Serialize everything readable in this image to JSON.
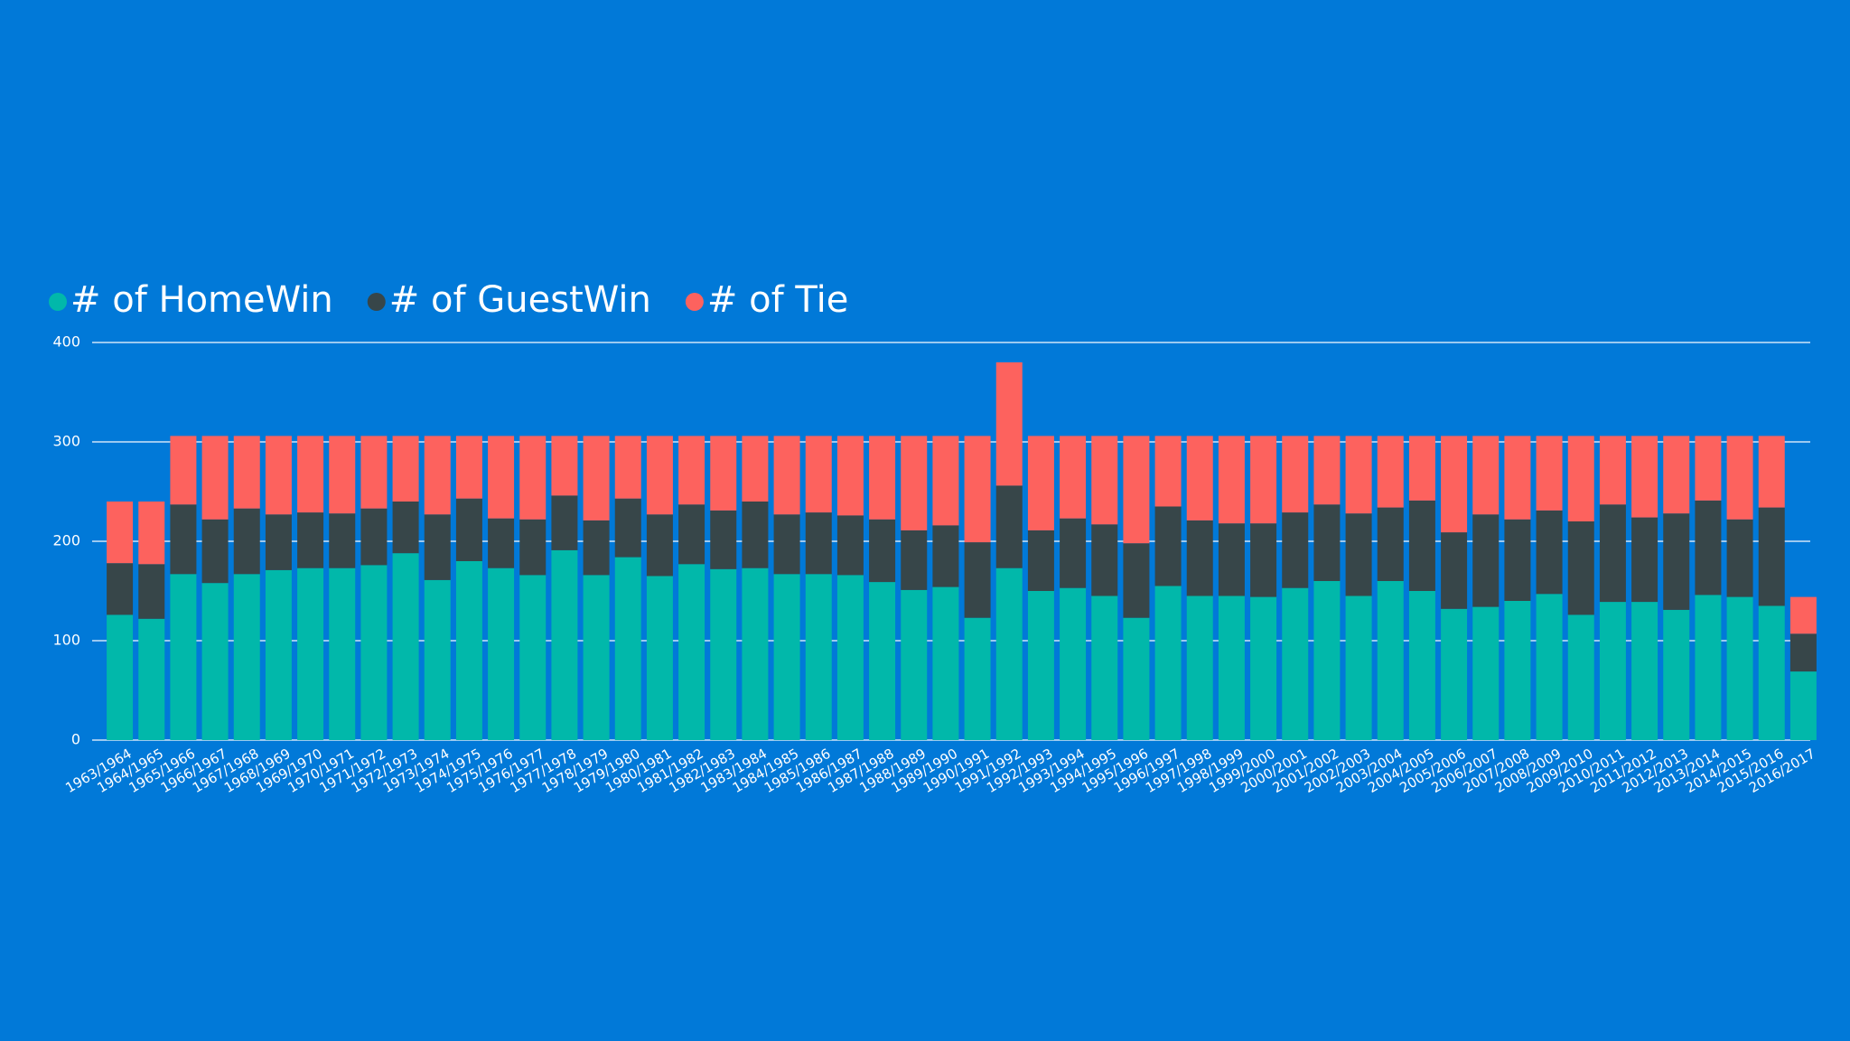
{
  "chart_data": {
    "type": "stacked-bar",
    "legend": "top-left",
    "grid": true,
    "categories": [
      "1963/1964",
      "1964/1965",
      "1965/1966",
      "1966/1967",
      "1967/1968",
      "1968/1969",
      "1969/1970",
      "1970/1971",
      "1971/1972",
      "1972/1973",
      "1973/1974",
      "1974/1975",
      "1975/1976",
      "1976/1977",
      "1977/1978",
      "1978/1979",
      "1979/1980",
      "1980/1981",
      "1981/1982",
      "1982/1983",
      "1983/1984",
      "1984/1985",
      "1985/1986",
      "1986/1987",
      "1987/1988",
      "1988/1989",
      "1989/1990",
      "1990/1991",
      "1991/1992",
      "1992/1993",
      "1993/1994",
      "1994/1995",
      "1995/1996",
      "1996/1997",
      "1997/1998",
      "1998/1999",
      "1999/2000",
      "2000/2001",
      "2001/2002",
      "2002/2003",
      "2003/2004",
      "2004/2005",
      "2005/2006",
      "2006/2007",
      "2007/2008",
      "2008/2009",
      "2009/2010",
      "2010/2011",
      "2011/2012",
      "2012/2013",
      "2013/2014",
      "2014/2015",
      "2015/2016",
      "2016/2017"
    ],
    "series": [
      {
        "name": "# of HomeWin",
        "color": "#01B8AA",
        "values": [
          126,
          122,
          167,
          158,
          167,
          171,
          173,
          173,
          176,
          188,
          161,
          180,
          173,
          166,
          191,
          166,
          184,
          165,
          177,
          172,
          173,
          167,
          167,
          166,
          159,
          151,
          154,
          123,
          173,
          150,
          153,
          145,
          123,
          155,
          145,
          145,
          144,
          153,
          160,
          145,
          160,
          150,
          132,
          134,
          140,
          147,
          126,
          139,
          139,
          131,
          146,
          144,
          135,
          69
        ]
      },
      {
        "name": "# of GuestWin",
        "color": "#374649",
        "values": [
          52,
          55,
          70,
          64,
          66,
          56,
          56,
          55,
          57,
          52,
          66,
          63,
          50,
          56,
          55,
          55,
          59,
          62,
          60,
          59,
          67,
          60,
          62,
          60,
          63,
          60,
          62,
          76,
          83,
          61,
          70,
          72,
          75,
          80,
          76,
          73,
          74,
          76,
          77,
          83,
          74,
          91,
          77,
          93,
          82,
          84,
          94,
          98,
          85,
          97,
          95,
          78,
          99,
          38
        ]
      },
      {
        "name": "# of Tie",
        "color": "#FD625E",
        "values": [
          62,
          63,
          69,
          84,
          73,
          79,
          77,
          78,
          73,
          66,
          79,
          63,
          83,
          84,
          60,
          85,
          63,
          79,
          69,
          75,
          66,
          79,
          77,
          80,
          84,
          95,
          90,
          107,
          124,
          95,
          83,
          89,
          108,
          71,
          85,
          88,
          88,
          77,
          69,
          78,
          72,
          65,
          97,
          79,
          84,
          75,
          86,
          69,
          82,
          78,
          65,
          84,
          72,
          37
        ]
      }
    ],
    "ylim": [
      0,
      400
    ],
    "yticks": [
      0,
      100,
      200,
      300,
      400
    ]
  }
}
